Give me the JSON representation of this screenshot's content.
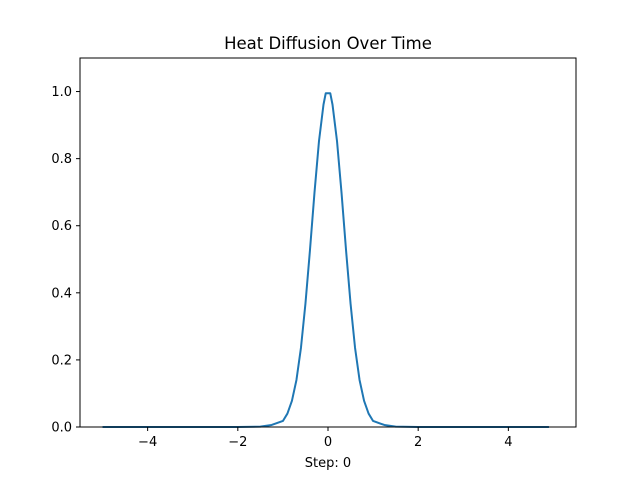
{
  "chart_data": {
    "type": "line",
    "title": "Heat Diffusion Over Time",
    "xlabel": "Step: 0",
    "ylabel": "",
    "xlim": [
      -5.5,
      5.5
    ],
    "ylim": [
      0.0,
      1.1
    ],
    "xticks": [
      -4,
      -2,
      0,
      2,
      4
    ],
    "xtick_labels": [
      "−4",
      "−2",
      "0",
      "2",
      "4"
    ],
    "yticks": [
      0.0,
      0.2,
      0.4,
      0.6,
      0.8,
      1.0
    ],
    "ytick_labels": [
      "0.0",
      "0.2",
      "0.4",
      "0.6",
      "0.8",
      "1.0"
    ],
    "grid": false,
    "legend": "none",
    "series": [
      {
        "color": "#1f77b4",
        "x": [
          -5.0,
          -4.0,
          -3.0,
          -2.0,
          -1.5,
          -1.25,
          -1.0,
          -0.9,
          -0.8,
          -0.7,
          -0.6,
          -0.5,
          -0.4,
          -0.3,
          -0.2,
          -0.1,
          -0.05,
          0.05,
          0.1,
          0.2,
          0.3,
          0.4,
          0.5,
          0.6,
          0.7,
          0.8,
          0.9,
          1.0,
          1.25,
          1.5,
          2.0,
          3.0,
          4.0,
          4.9
        ],
        "y": [
          0.0,
          0.0,
          0.0,
          0.0,
          0.001,
          0.006,
          0.018,
          0.04,
          0.078,
          0.14,
          0.236,
          0.368,
          0.527,
          0.698,
          0.852,
          0.961,
          0.995,
          0.995,
          0.961,
          0.852,
          0.698,
          0.527,
          0.368,
          0.236,
          0.14,
          0.078,
          0.04,
          0.018,
          0.006,
          0.001,
          0.0,
          0.0,
          0.0,
          0.0
        ]
      }
    ]
  }
}
